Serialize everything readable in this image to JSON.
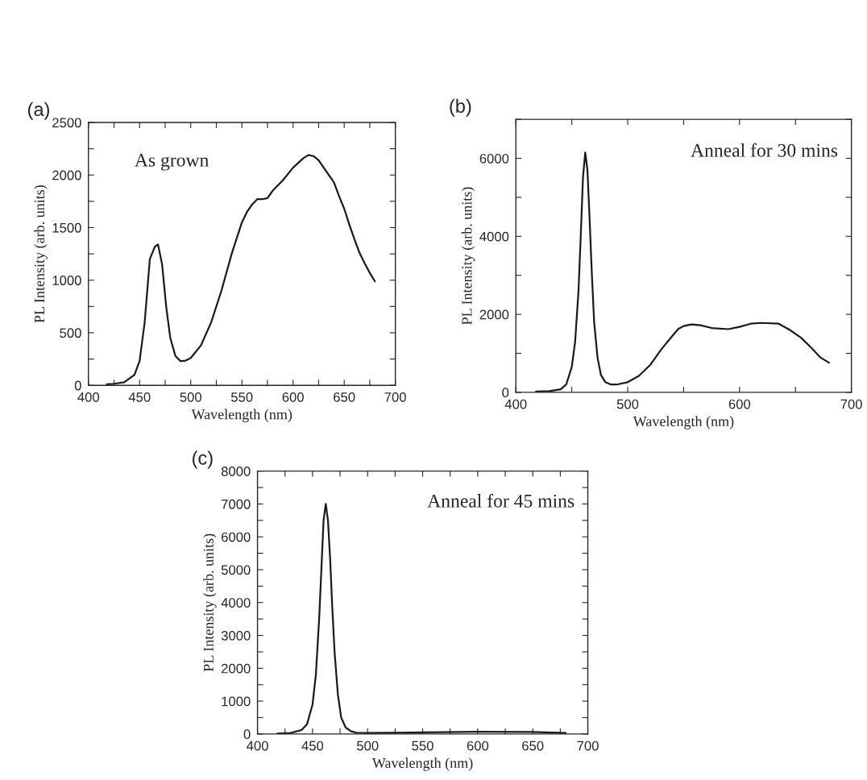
{
  "chart_data": [
    {
      "type": "line",
      "xlabel": "Wavelength (nm)",
      "ylabel": "PL Intensity (arb. units)",
      "annotations": [
        "(a)",
        "As grown"
      ],
      "grid": false,
      "xlim": [
        400,
        700
      ],
      "xticks": [
        400,
        {
          "value": 425,
          "label": null
        },
        450,
        {
          "value": 475,
          "label": null
        },
        500,
        {
          "value": 525,
          "label": null
        },
        550,
        {
          "value": 575,
          "label": null
        },
        600,
        {
          "value": 625,
          "label": null
        },
        650,
        {
          "value": 675,
          "label": null
        },
        700
      ],
      "ylim": [
        0,
        2500
      ],
      "yticks": [
        0,
        {
          "value": 250,
          "label": null
        },
        500,
        {
          "value": 750,
          "label": null
        },
        1000,
        {
          "value": 1250,
          "label": null
        },
        1500,
        {
          "value": 1750,
          "label": null
        },
        2000,
        {
          "value": 2250,
          "label": null
        },
        2500
      ],
      "series": [
        {
          "color": "#1a1a1a",
          "x": [
            418,
            425,
            435,
            445,
            450,
            455,
            460,
            465,
            468,
            472,
            476,
            480,
            485,
            490,
            495,
            500,
            510,
            520,
            530,
            540,
            550,
            555,
            560,
            565,
            570,
            575,
            580,
            590,
            600,
            610,
            615,
            620,
            625,
            630,
            640,
            645,
            650,
            655,
            660,
            665,
            670,
            675,
            680
          ],
          "values": [
            10,
            15,
            30,
            100,
            230,
            600,
            1200,
            1320,
            1340,
            1150,
            750,
            450,
            280,
            230,
            235,
            260,
            380,
            600,
            900,
            1250,
            1550,
            1650,
            1720,
            1770,
            1770,
            1780,
            1850,
            1950,
            2070,
            2160,
            2190,
            2180,
            2140,
            2070,
            1930,
            1800,
            1680,
            1530,
            1390,
            1260,
            1160,
            1070,
            990
          ]
        }
      ]
    },
    {
      "type": "line",
      "xlabel": "Wavelength (nm)",
      "ylabel": "PL Intensity (arb. units)",
      "annotations": [
        "(b)",
        "Anneal for 30 mins"
      ],
      "grid": false,
      "xlim": [
        400,
        700
      ],
      "xticks": [
        400,
        {
          "value": 450,
          "label": null
        },
        500,
        {
          "value": 550,
          "label": null
        },
        600,
        {
          "value": 650,
          "label": null
        },
        700
      ],
      "ylim": [
        0,
        7000
      ],
      "yticks": [
        0,
        {
          "value": 1000,
          "label": null
        },
        2000,
        {
          "value": 3000,
          "label": null
        },
        4000,
        {
          "value": 5000,
          "label": null
        },
        6000,
        {
          "value": 7000,
          "label": null
        }
      ],
      "series": [
        {
          "color": "#1a1a1a",
          "x": [
            418,
            430,
            440,
            445,
            450,
            453,
            456,
            458,
            460,
            462,
            464,
            466,
            468,
            470,
            473,
            476,
            480,
            485,
            490,
            500,
            510,
            520,
            530,
            540,
            545,
            550,
            557,
            565,
            575,
            590,
            600,
            610,
            620,
            635,
            645,
            655,
            665,
            672,
            680
          ],
          "values": [
            20,
            30,
            80,
            200,
            650,
            1300,
            2600,
            4000,
            5500,
            6150,
            5700,
            4400,
            3000,
            1800,
            900,
            450,
            260,
            200,
            200,
            260,
            420,
            700,
            1100,
            1450,
            1620,
            1700,
            1740,
            1720,
            1650,
            1620,
            1680,
            1760,
            1780,
            1760,
            1600,
            1400,
            1120,
            900,
            760
          ]
        }
      ]
    },
    {
      "type": "line",
      "xlabel": "Wavelength (nm)",
      "ylabel": "PL Intensity (arb. units)",
      "annotations": [
        "(c)",
        "Anneal for 45 mins"
      ],
      "grid": false,
      "xlim": [
        400,
        700
      ],
      "xticks": [
        400,
        {
          "value": 425,
          "label": null
        },
        450,
        {
          "value": 475,
          "label": null
        },
        500,
        {
          "value": 525,
          "label": null
        },
        550,
        {
          "value": 575,
          "label": null
        },
        600,
        {
          "value": 625,
          "label": null
        },
        650,
        {
          "value": 675,
          "label": null
        },
        700
      ],
      "ylim": [
        0,
        8000
      ],
      "yticks": [
        0,
        {
          "value": 500,
          "label": null
        },
        1000,
        {
          "value": 1500,
          "label": null
        },
        2000,
        {
          "value": 2500,
          "label": null
        },
        3000,
        {
          "value": 3500,
          "label": null
        },
        4000,
        {
          "value": 4500,
          "label": null
        },
        5000,
        {
          "value": 5500,
          "label": null
        },
        6000,
        {
          "value": 6500,
          "label": null
        },
        7000,
        {
          "value": 7500,
          "label": null
        },
        8000
      ],
      "series": [
        {
          "color": "#1a1a1a",
          "x": [
            418,
            430,
            440,
            445,
            450,
            453,
            456,
            458,
            460,
            462,
            464,
            466,
            468,
            470,
            473,
            476,
            480,
            485,
            490,
            500,
            550,
            600,
            650,
            680
          ],
          "values": [
            10,
            30,
            120,
            300,
            900,
            1800,
            3500,
            5000,
            6500,
            7000,
            6500,
            5300,
            3800,
            2500,
            1200,
            500,
            200,
            80,
            40,
            30,
            50,
            70,
            60,
            30
          ]
        }
      ]
    }
  ]
}
